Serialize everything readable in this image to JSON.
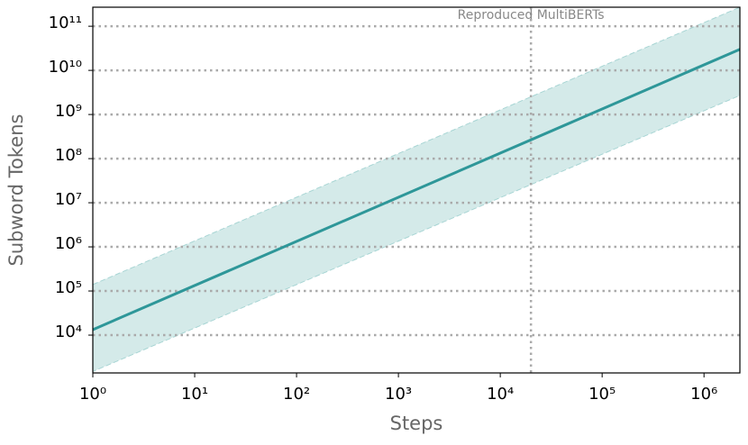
{
  "chart_data": {
    "type": "line",
    "xlabel": "Steps",
    "ylabel": "Subword Tokens",
    "xscale": "log",
    "yscale": "log",
    "xlim": [
      1,
      2250000
    ],
    "ylim": [
      1390,
      270000000000
    ],
    "xticks": [
      {
        "value": 1,
        "label": "10⁰"
      },
      {
        "value": 10,
        "label": "10¹"
      },
      {
        "value": 100,
        "label": "10²"
      },
      {
        "value": 1000,
        "label": "10³"
      },
      {
        "value": 10000,
        "label": "10⁴"
      },
      {
        "value": 100000,
        "label": "10⁵"
      },
      {
        "value": 1000000,
        "label": "10⁶"
      }
    ],
    "yticks": [
      {
        "value": 10000,
        "label": "10⁴"
      },
      {
        "value": 100000,
        "label": "10⁵"
      },
      {
        "value": 1000000,
        "label": "10⁶"
      },
      {
        "value": 10000000,
        "label": "10⁷"
      },
      {
        "value": 100000000,
        "label": "10⁸"
      },
      {
        "value": 1000000000,
        "label": "10⁹"
      },
      {
        "value": 10000000000,
        "label": "10¹⁰"
      },
      {
        "value": 100000000000,
        "label": "10¹¹"
      }
    ],
    "grid": "y",
    "series": [
      {
        "color": "#2e9799",
        "x": [
          1,
          2250000
        ],
        "values": [
          13300,
          30000000000
        ]
      }
    ],
    "band": {
      "color": "#d4eae9",
      "x": [
        1,
        2250000
      ],
      "lower": [
        1500,
        2700000000
      ],
      "upper": [
        140000,
        270000000000
      ]
    },
    "vline": {
      "x": 20000,
      "label": "Reproduced MultiBERTs",
      "color": "#aaaaaa"
    }
  }
}
